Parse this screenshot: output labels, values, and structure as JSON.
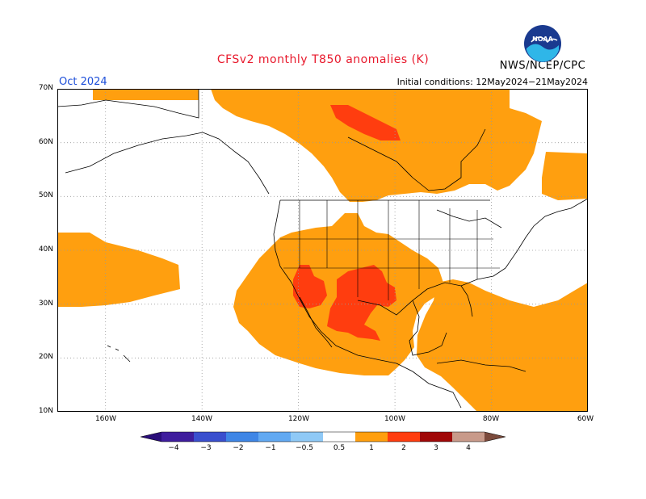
{
  "header": {
    "title": "CFSv2 monthly T850 anomalies (K)",
    "agency": "NWS/NCEP/CPC",
    "month": "Oct 2024",
    "initial_conditions": "Initial conditions: 12May2024−21May2024",
    "logo_text": "NOAA"
  },
  "map": {
    "lat_labels": [
      "70N",
      "60N",
      "50N",
      "40N",
      "30N",
      "20N",
      "10N"
    ],
    "lon_labels": [
      "160W",
      "140W",
      "120W",
      "100W",
      "80W",
      "60W"
    ],
    "lat_range": [
      10,
      70
    ],
    "lon_range": [
      -170,
      -60
    ],
    "grid_lines": "dotted every 10 degrees"
  },
  "colorbar": {
    "labels": [
      "−4",
      "−3",
      "−2",
      "−1",
      "−0.5",
      "0.5",
      "1",
      "2",
      "3",
      "4"
    ],
    "colors": [
      "#3f1d9d",
      "#3a4fce",
      "#3f86e6",
      "#62a9f2",
      "#8fc9f6",
      "#ffffff",
      "#ff9f0f",
      "#ff3d0f",
      "#a00808",
      "#c89a8a",
      "#7b4a3c"
    ]
  }
}
